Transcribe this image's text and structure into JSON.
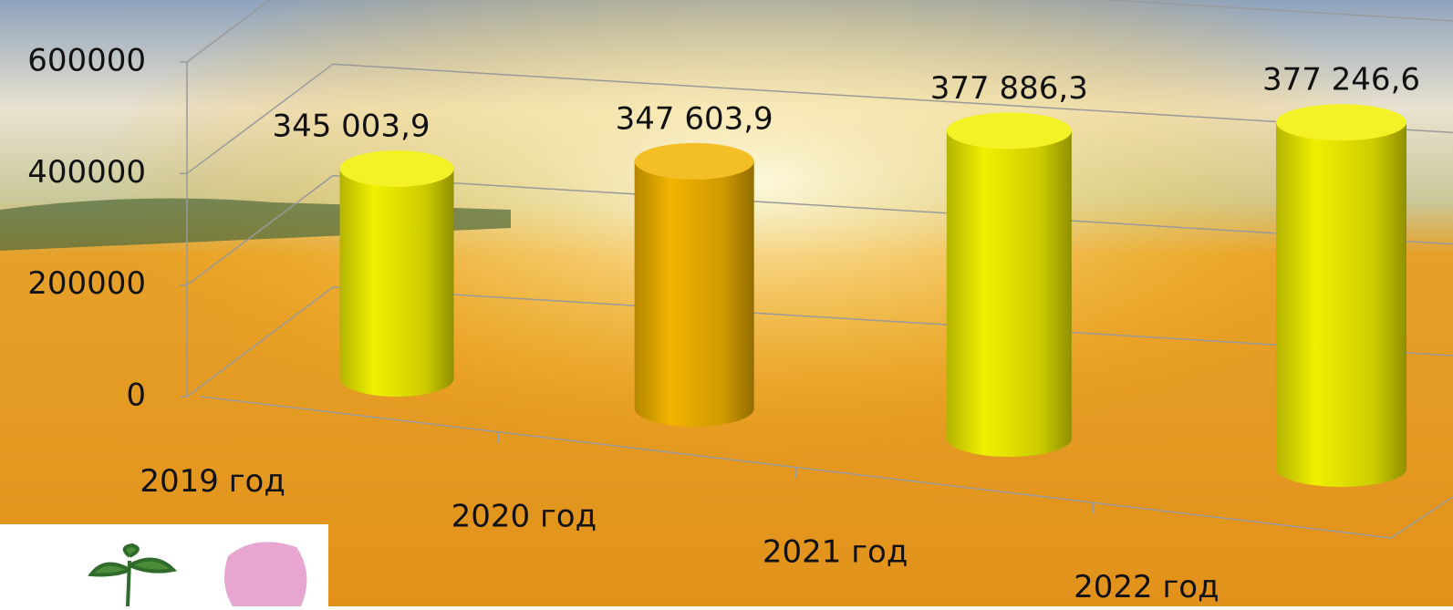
{
  "chart_data": {
    "type": "bar",
    "categories": [
      "2019 год",
      "2020 год",
      "2021 год",
      "2022 год"
    ],
    "values": [
      345003.9,
      347603.9,
      377886.3,
      377246.6
    ],
    "value_labels": [
      "345 003,9",
      "347 603,9",
      "377 886,3",
      "377 246,6"
    ],
    "colors": [
      "#f0f000",
      "#f2b400",
      "#f0f000",
      "#f0f000"
    ],
    "ylim": [
      0,
      600000
    ],
    "yticks": [
      0,
      200000,
      400000,
      600000
    ],
    "grid": true
  }
}
